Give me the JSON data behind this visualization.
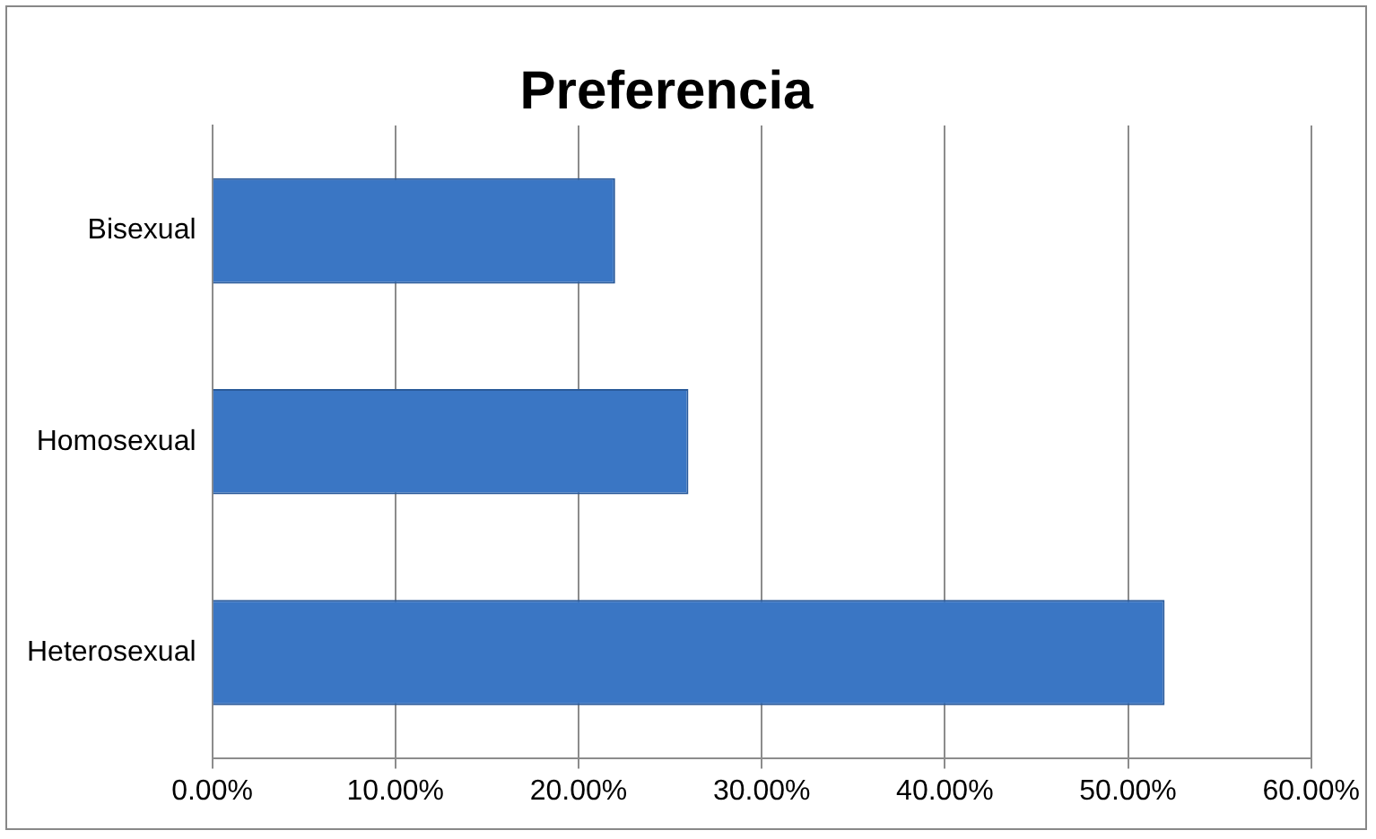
{
  "chart_data": {
    "type": "bar",
    "orientation": "horizontal",
    "title": "Preferencia",
    "categories": [
      "Bisexual",
      "Homosexual",
      "Heterosexual"
    ],
    "values": [
      22,
      26,
      52
    ],
    "color": "#3a76c4",
    "xlim": [
      0,
      60
    ],
    "xticks": [
      {
        "value": 0,
        "label": "0.00%"
      },
      {
        "value": 10,
        "label": "10.00%"
      },
      {
        "value": 20,
        "label": "20.00%"
      },
      {
        "value": 30,
        "label": "30.00%"
      },
      {
        "value": 40,
        "label": "40.00%"
      },
      {
        "value": 50,
        "label": "50.00%"
      },
      {
        "value": 60,
        "label": "60.00%"
      }
    ],
    "grid": "x",
    "legend": false
  }
}
